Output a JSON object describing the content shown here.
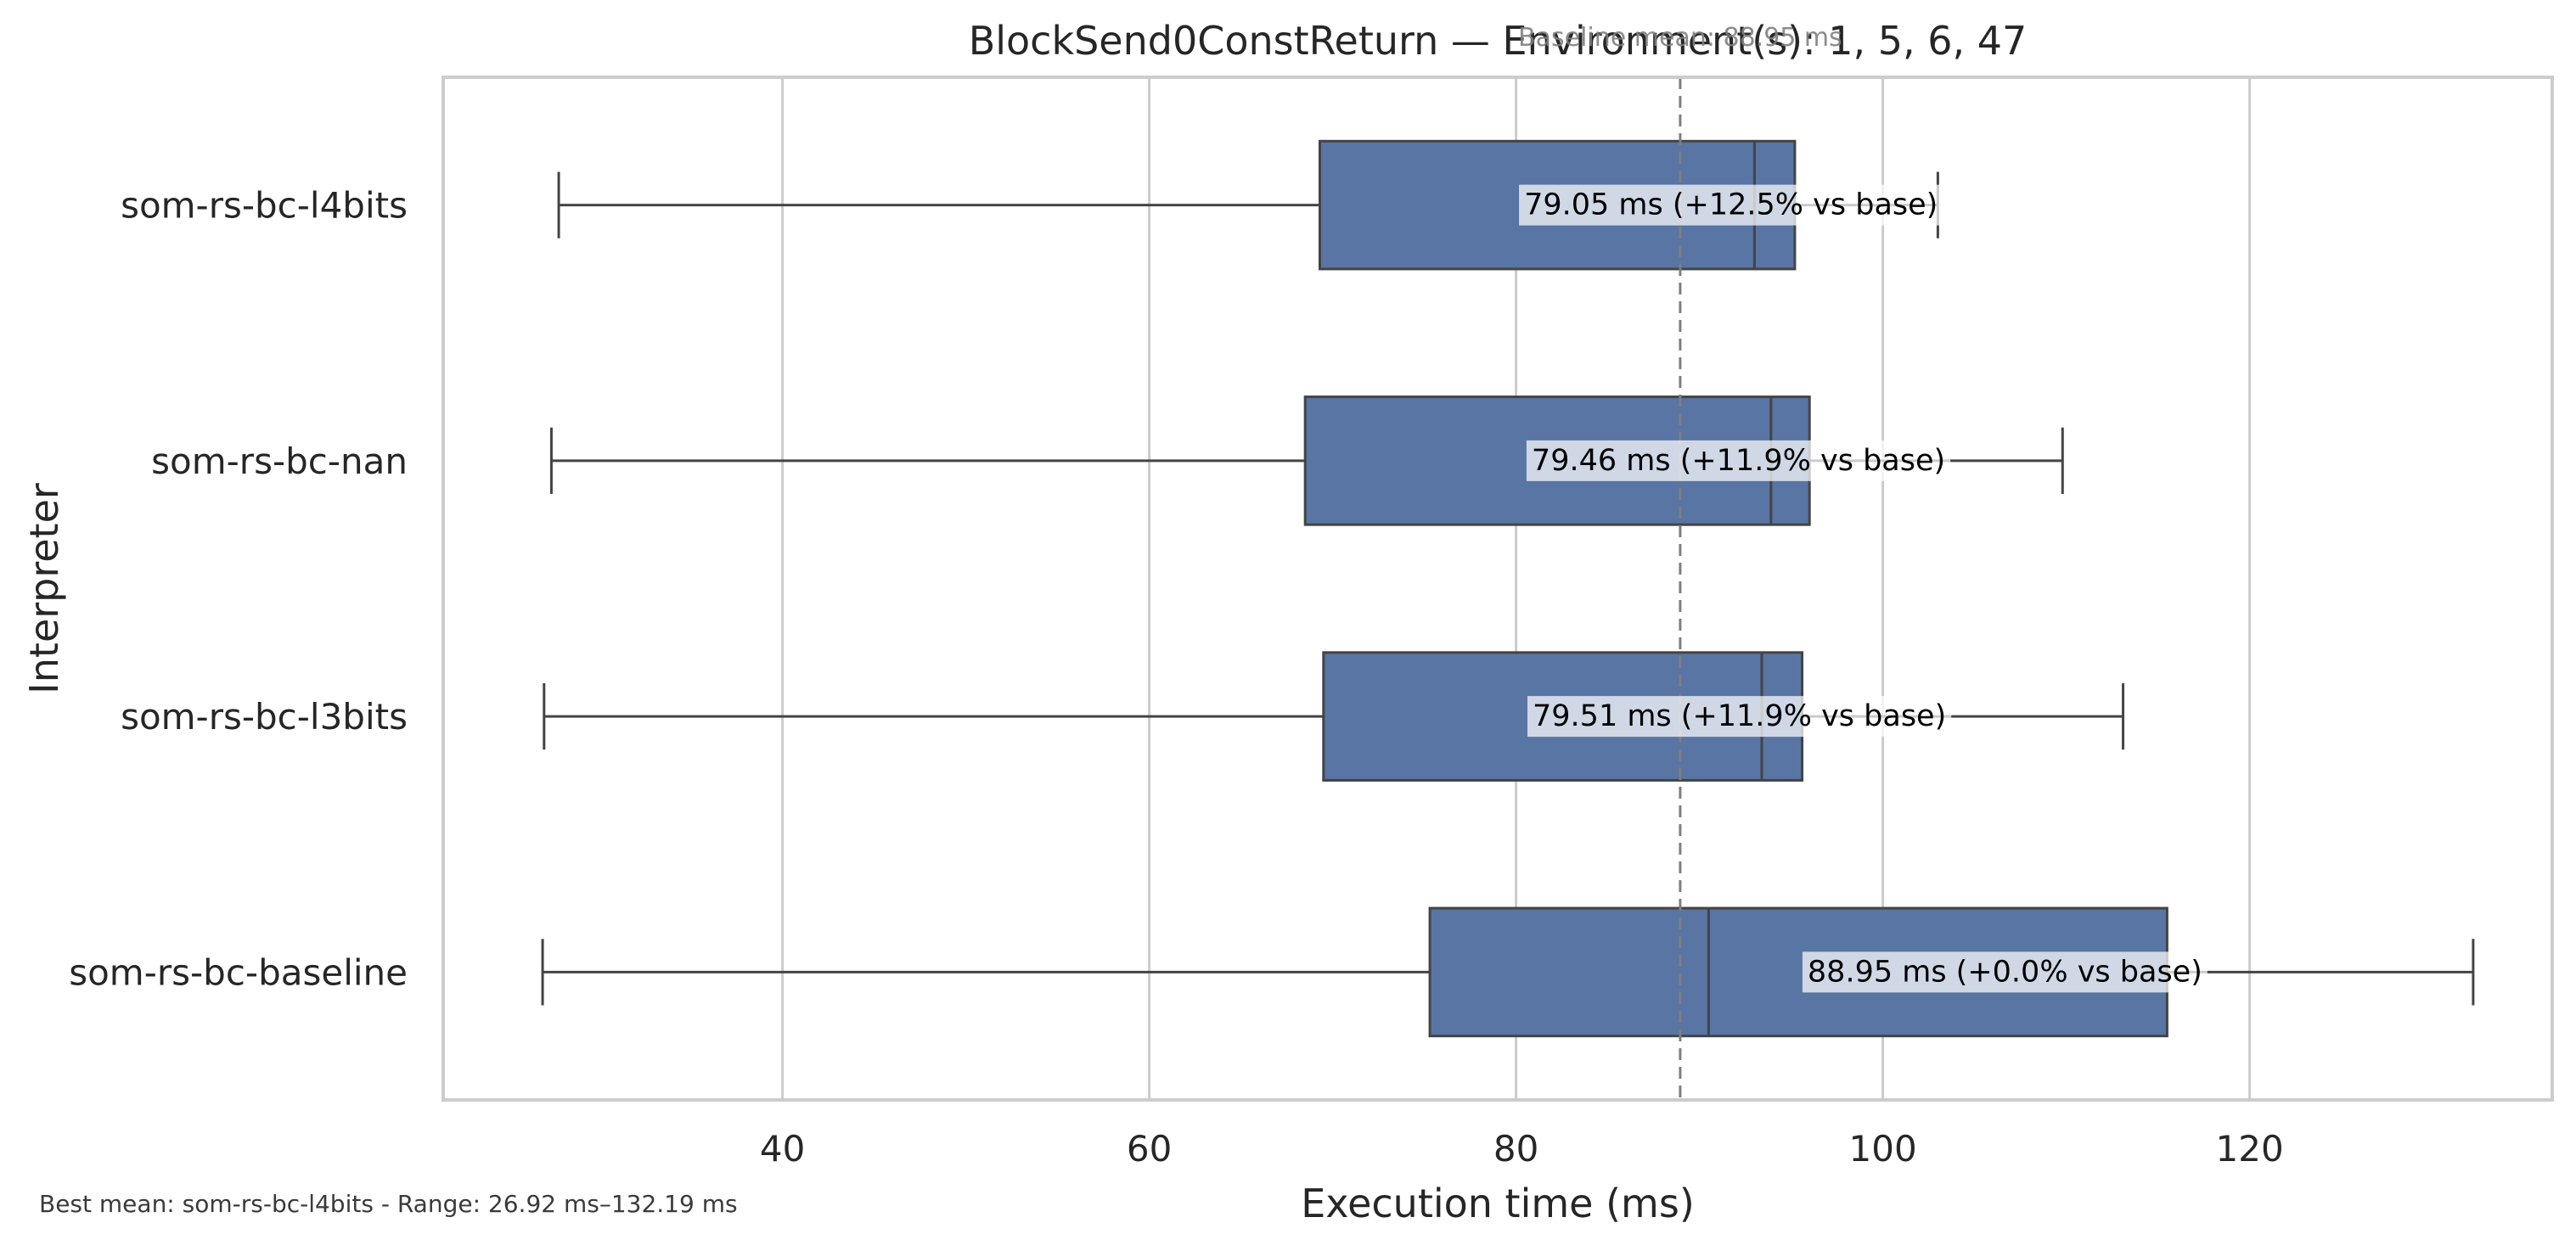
{
  "chart_data": {
    "type": "box",
    "orientation": "horizontal",
    "title": "BlockSend0ConstReturn — Environment(s): 1, 5, 6, 47",
    "xlabel": "Execution time (ms)",
    "ylabel": "Interpreter",
    "xlim": [
      21.5,
      136.5
    ],
    "xticks": [
      40,
      60,
      80,
      100,
      120
    ],
    "grid": "vertical",
    "box_color": "#5875a4",
    "edge_color": "#444444",
    "baseline": {
      "value": 88.95,
      "label": "Baseline mean: 88.95 ms",
      "color": "#7f7f7f",
      "style": "dashed"
    },
    "categories": [
      "som-rs-bc-l4bits",
      "som-rs-bc-nan",
      "som-rs-bc-l3bits",
      "som-rs-bc-baseline"
    ],
    "series": [
      {
        "category": "som-rs-bc-l4bits",
        "whisker_low": 27.8,
        "q1": 69.3,
        "median": 93.0,
        "q3": 95.2,
        "whisker_high": 103.0,
        "mean": 79.05,
        "annotation": "79.05 ms  (+12.5% vs base)"
      },
      {
        "category": "som-rs-bc-nan",
        "whisker_low": 27.4,
        "q1": 68.5,
        "median": 93.9,
        "q3": 96.0,
        "whisker_high": 109.8,
        "mean": 79.46,
        "annotation": "79.46 ms  (+11.9% vs base)"
      },
      {
        "category": "som-rs-bc-l3bits",
        "whisker_low": 27.0,
        "q1": 69.5,
        "median": 93.4,
        "q3": 95.6,
        "whisker_high": 113.1,
        "mean": 79.51,
        "annotation": "79.51 ms  (+11.9% vs base)"
      },
      {
        "category": "som-rs-bc-baseline",
        "whisker_low": 26.92,
        "q1": 75.3,
        "median": 90.5,
        "q3": 115.5,
        "whisker_high": 132.19,
        "mean": 88.95,
        "annotation": "88.95 ms  (+0.0% vs base)"
      }
    ],
    "footnote": "Best mean: som-rs-bc-l4bits - Range: 26.92 ms–132.19 ms"
  }
}
